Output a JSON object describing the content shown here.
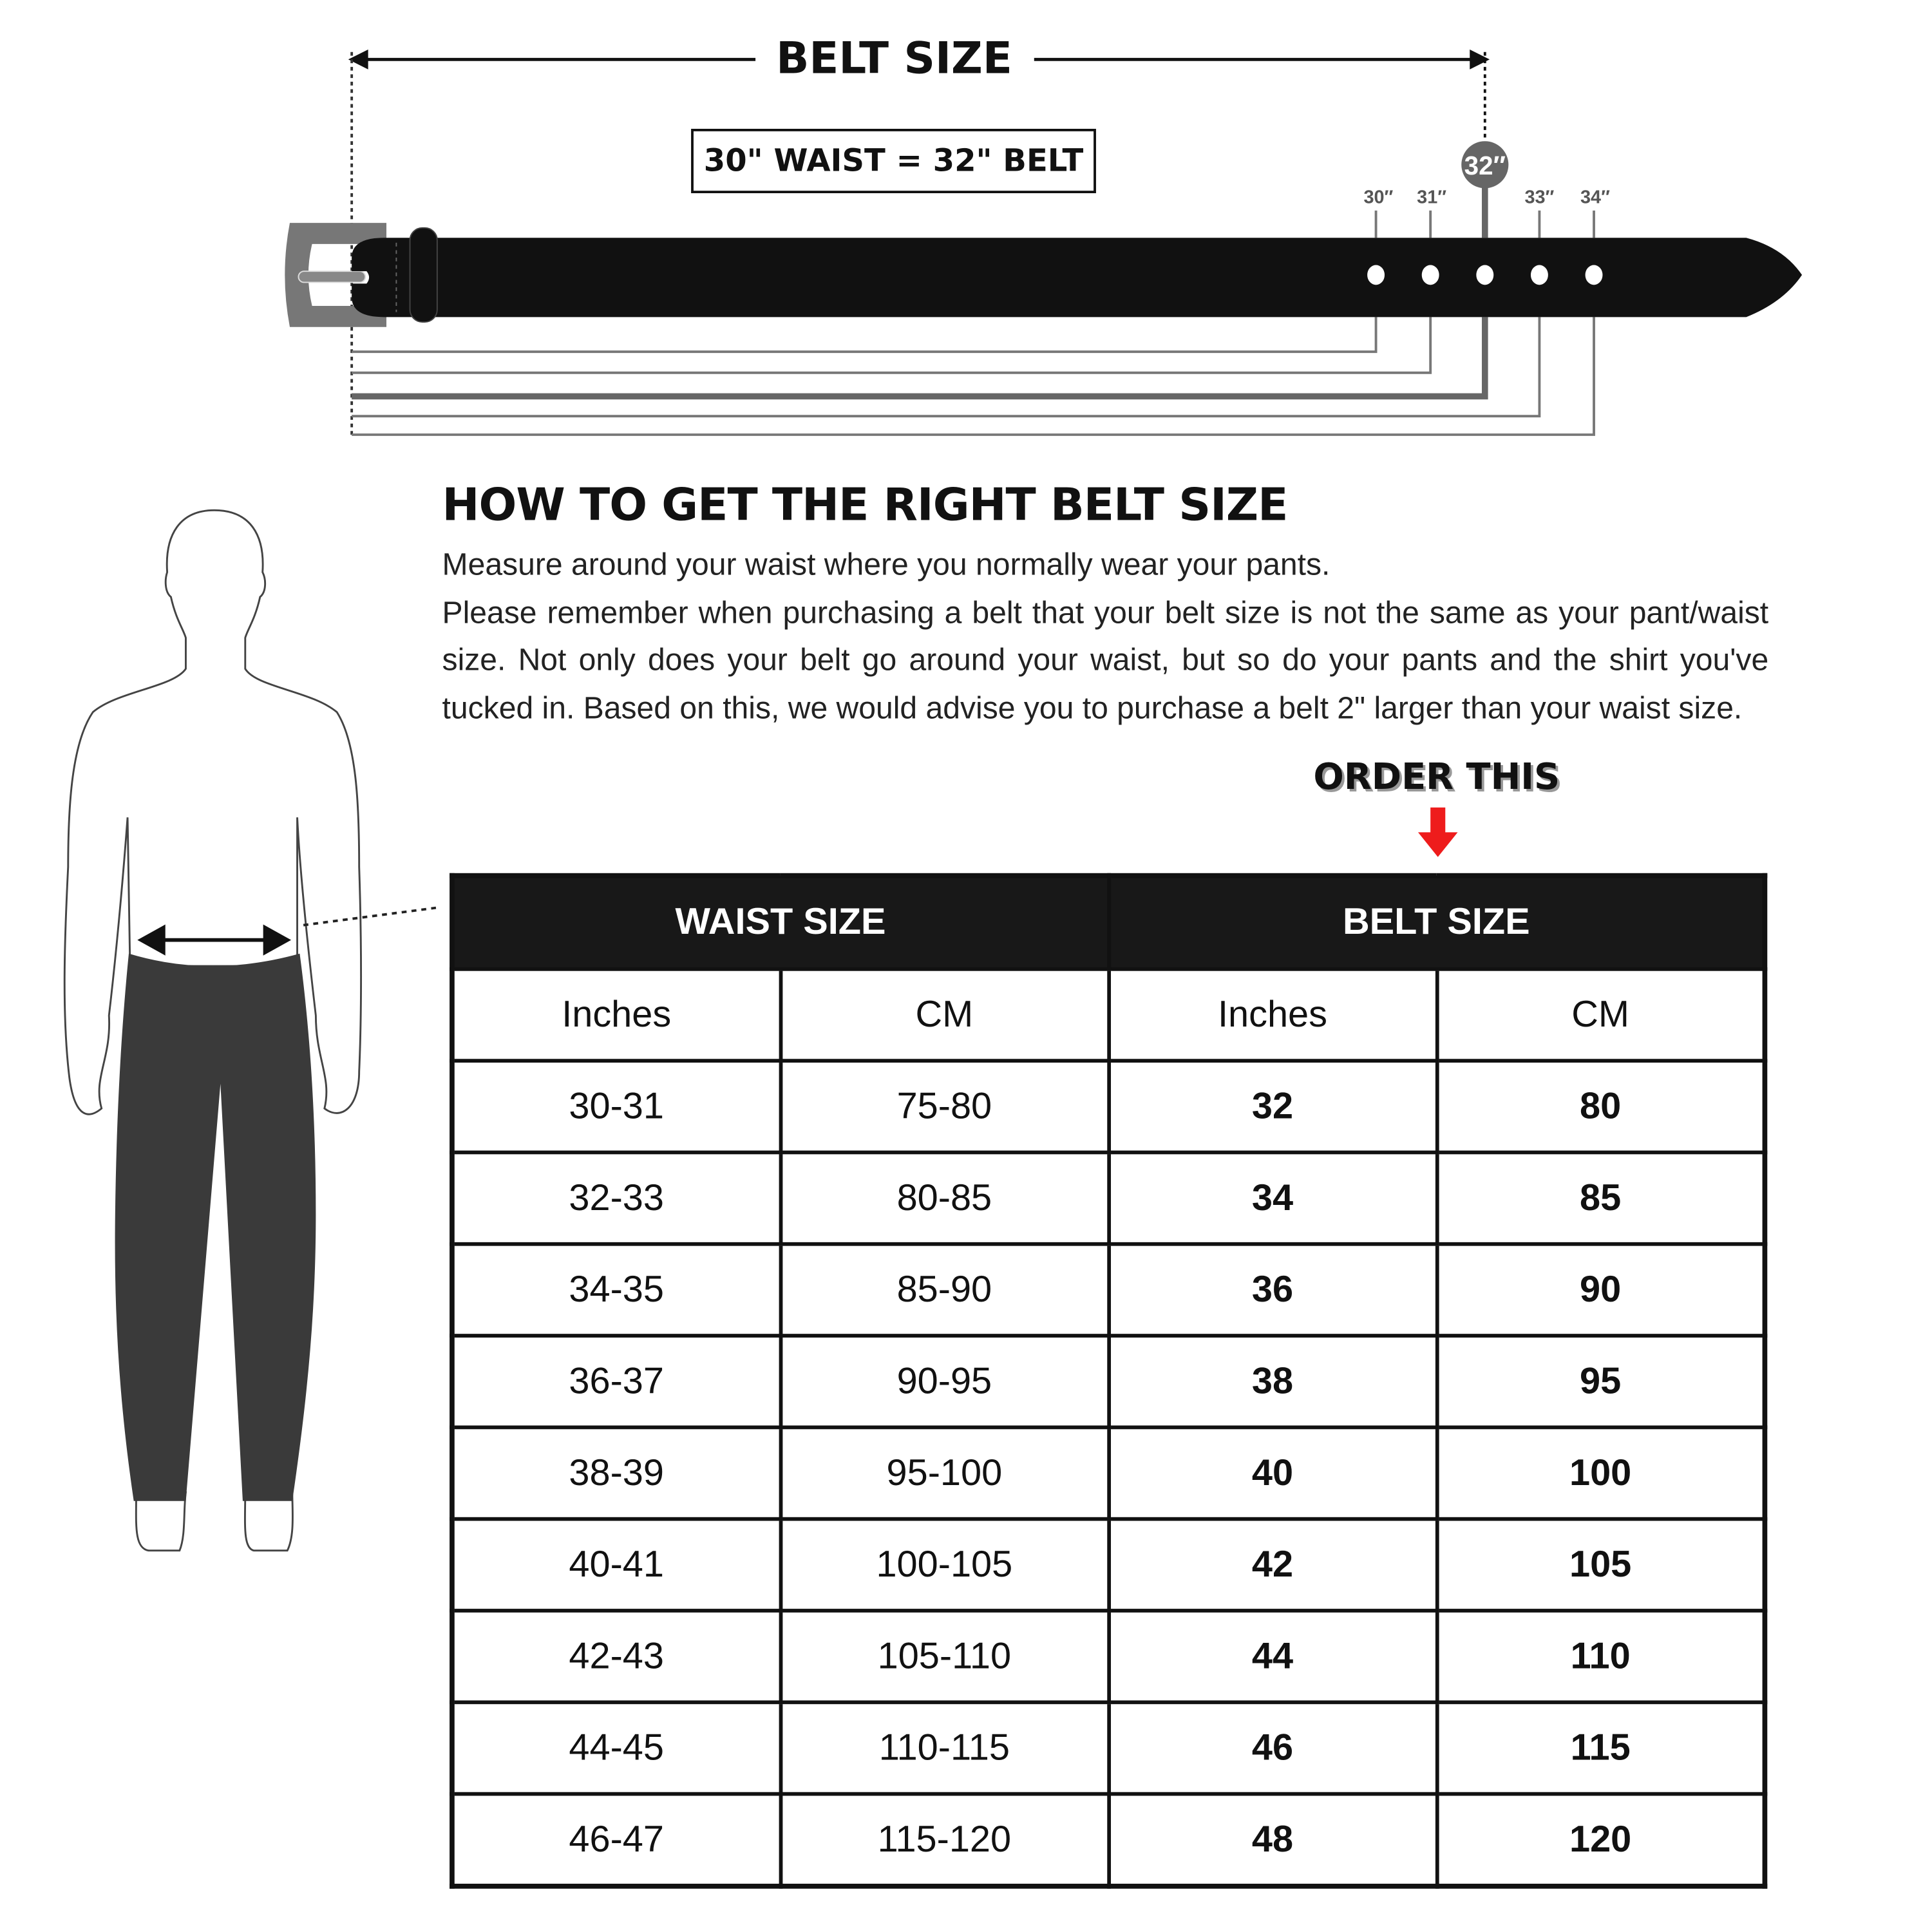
{
  "diagram": {
    "title": "BELT SIZE",
    "equation": "30\" WAIST = 32\" BELT",
    "hole_labels": [
      "30″",
      "31″",
      "32″",
      "33″",
      "34″"
    ],
    "highlight_label": "32″",
    "colors": {
      "belt": "#111111",
      "buckle": "#777777",
      "highlight": "#666666"
    }
  },
  "instructions": {
    "heading": "HOW TO GET THE RIGHT BELT SIZE",
    "line1": "Measure around your waist where you normally wear your pants.",
    "line2": "Please remember when purchasing a belt that your belt size is not the same as your pant/waist size. Not only does your belt go around your waist, but so do your pants and the shirt you've tucked in. Based on this, we would advise you to purchase a belt 2\" larger than your waist size."
  },
  "callout": {
    "label": "ORDER THIS",
    "arrow_color": "#ee1c1c"
  },
  "table": {
    "groups": [
      "WAIST SIZE",
      "BELT SIZE"
    ],
    "subheaders": [
      "Inches",
      "CM",
      "Inches",
      "CM"
    ],
    "rows": [
      [
        "30-31",
        "75-80",
        "32",
        "80"
      ],
      [
        "32-33",
        "80-85",
        "34",
        "85"
      ],
      [
        "34-35",
        "85-90",
        "36",
        "90"
      ],
      [
        "36-37",
        "90-95",
        "38",
        "95"
      ],
      [
        "38-39",
        "95-100",
        "40",
        "100"
      ],
      [
        "40-41",
        "100-105",
        "42",
        "105"
      ],
      [
        "42-43",
        "105-110",
        "44",
        "110"
      ],
      [
        "44-45",
        "110-115",
        "46",
        "115"
      ],
      [
        "46-47",
        "115-120",
        "48",
        "120"
      ]
    ]
  }
}
